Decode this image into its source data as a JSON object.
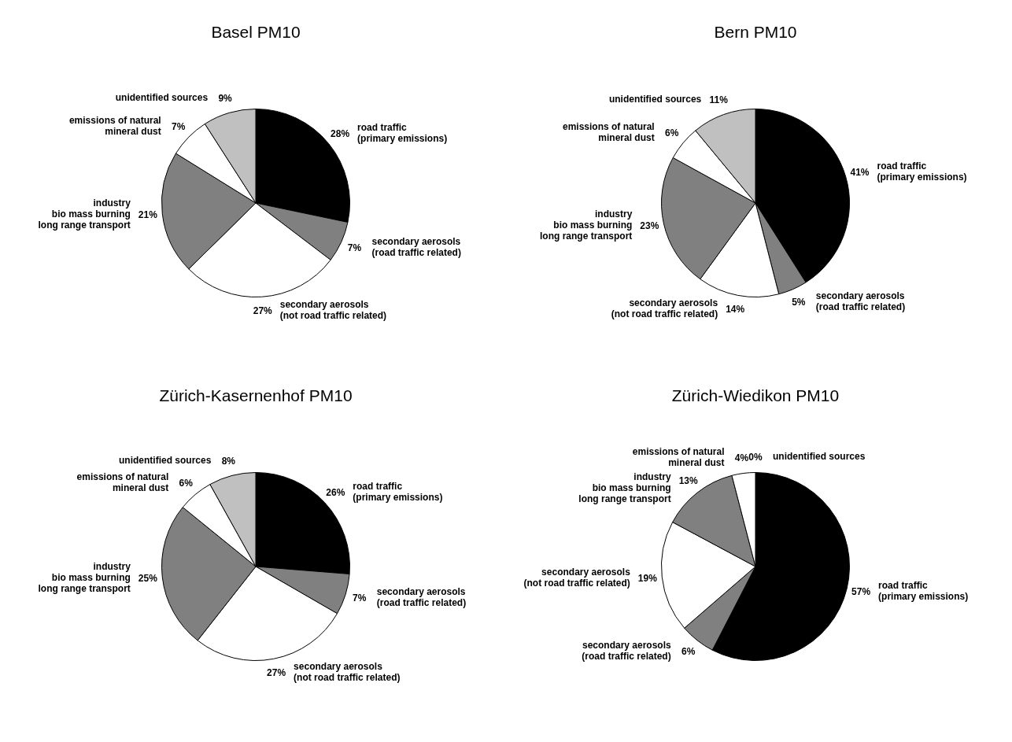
{
  "chart_data": [
    {
      "type": "pie",
      "title": "Basel PM10",
      "categories": [
        "road traffic\n(primary emissions)",
        "secondary aerosols\n(road traffic related)",
        "secondary aerosols\n(not road traffic related)",
        "industry\nbio mass burning\nlong range transport",
        "emissions of natural\nmineral dust",
        "unidentified sources"
      ],
      "values": [
        28,
        7,
        27,
        21,
        7,
        9
      ],
      "value_labels": [
        "28%",
        "7%",
        "27%",
        "21%",
        "7%",
        "9%"
      ],
      "colors": [
        "#000000",
        "#808080",
        "#ffffff",
        "#808080",
        "#ffffff",
        "#c0c0c0"
      ]
    },
    {
      "type": "pie",
      "title": "Bern PM10",
      "categories": [
        "road traffic\n(primary emissions)",
        "secondary aerosols\n(road traffic related)",
        "secondary aerosols\n(not road traffic related)",
        "industry\nbio mass burning\nlong range transport",
        "emissions of natural\nmineral dust",
        "unidentified sources"
      ],
      "values": [
        41,
        5,
        14,
        23,
        6,
        11
      ],
      "value_labels": [
        "41%",
        "5%",
        "14%",
        "23%",
        "6%",
        "11%"
      ],
      "colors": [
        "#000000",
        "#808080",
        "#ffffff",
        "#808080",
        "#ffffff",
        "#c0c0c0"
      ]
    },
    {
      "type": "pie",
      "title": "Zürich-Kasernenhof PM10",
      "categories": [
        "road traffic\n(primary emissions)",
        "secondary aerosols\n(road traffic related)",
        "secondary aerosols\n(not road traffic related)",
        "industry\nbio mass burning\nlong range transport",
        "emissions of natural\nmineral dust",
        "unidentified sources"
      ],
      "values": [
        26,
        7,
        27,
        25,
        6,
        8
      ],
      "value_labels": [
        "26%",
        "7%",
        "27%",
        "25%",
        "6%",
        "8%"
      ],
      "colors": [
        "#000000",
        "#808080",
        "#ffffff",
        "#808080",
        "#ffffff",
        "#c0c0c0"
      ]
    },
    {
      "type": "pie",
      "title": "Zürich-Wiedikon PM10",
      "categories": [
        "road traffic\n(primary emissions)",
        "secondary aerosols\n(road traffic related)",
        "secondary aerosols\n(not road traffic related)",
        "industry\nbio mass burning\nlong range transport",
        "emissions of natural\nmineral dust",
        "unidentified sources"
      ],
      "values": [
        57,
        6,
        19,
        13,
        4,
        0
      ],
      "value_labels": [
        "57%",
        "6%",
        "19%",
        "13%",
        "4%",
        "0%"
      ],
      "colors": [
        "#000000",
        "#808080",
        "#ffffff",
        "#808080",
        "#ffffff",
        "#c0c0c0"
      ]
    }
  ]
}
